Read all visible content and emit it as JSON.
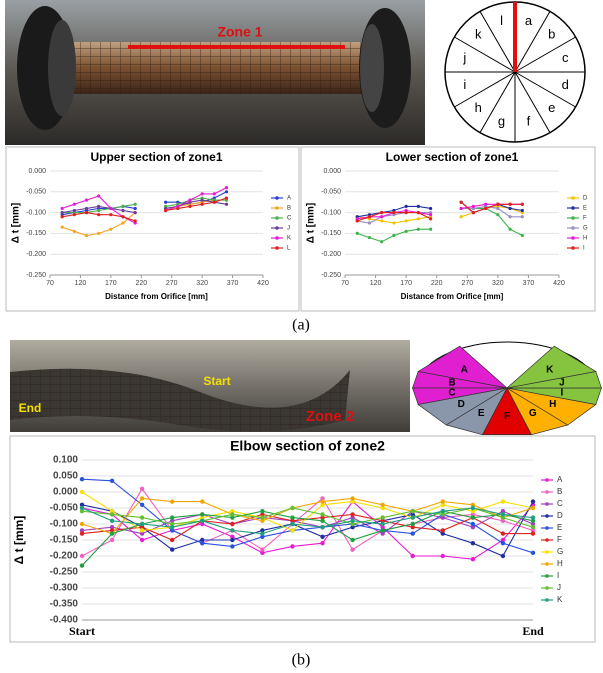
{
  "figure": {
    "caption_a": "(a)",
    "caption_b": "(b)",
    "zone1": "Zone 1",
    "zone2": "Zone 2",
    "start": "Start",
    "end": "End",
    "clock_labels": [
      "a",
      "b",
      "c",
      "d",
      "e",
      "f",
      "g",
      "h",
      "i",
      "j",
      "k",
      "l"
    ],
    "pie_labels": [
      "A",
      "B",
      "C",
      "D",
      "E",
      "F",
      "G",
      "H",
      "I",
      "J",
      "K"
    ]
  },
  "chart_data": [
    {
      "type": "line",
      "title": "Upper section of zone1",
      "x_label": "Distance from Orifice [mm]",
      "y_label": "Δ t [mm]",
      "x": [
        90,
        110,
        130,
        150,
        170,
        190,
        210,
        235,
        260,
        280,
        300,
        320,
        340,
        360
      ],
      "xlim": [
        70,
        420
      ],
      "xticks": [
        70,
        120,
        170,
        220,
        270,
        320,
        370,
        420
      ],
      "ylim": [
        -0.25,
        0
      ],
      "yticks": [
        {
          "value": 0,
          "label": "0.000"
        },
        {
          "value": -0.05,
          "label": "-0.050"
        },
        {
          "value": -0.1,
          "label": "-0.100"
        },
        {
          "value": -0.15,
          "label": "-0.150"
        },
        {
          "value": -0.2,
          "label": "-0.200"
        },
        {
          "value": -0.25,
          "label": "-0.250"
        }
      ],
      "grid": true,
      "legend": "right",
      "series": [
        {
          "name": "A",
          "color": "#2a3fd0",
          "values": [
            -0.105,
            -0.1,
            -0.095,
            -0.09,
            -0.09,
            -0.085,
            -0.09,
            null,
            -0.075,
            -0.075,
            -0.08,
            -0.075,
            -0.065,
            -0.05
          ]
        },
        {
          "name": "B",
          "color": "#f5a623",
          "values": [
            -0.135,
            -0.145,
            -0.155,
            -0.15,
            -0.14,
            -0.125,
            -0.1,
            null,
            -0.09,
            -0.085,
            -0.08,
            -0.075,
            -0.07,
            -0.07
          ]
        },
        {
          "name": "C",
          "color": "#4caf50",
          "values": [
            -0.1,
            -0.1,
            -0.1,
            -0.095,
            -0.09,
            -0.085,
            -0.08,
            null,
            -0.085,
            -0.08,
            -0.07,
            -0.065,
            -0.07,
            -0.07
          ]
        },
        {
          "name": "J",
          "color": "#6a3d9a",
          "values": [
            -0.1,
            -0.095,
            -0.09,
            -0.085,
            -0.09,
            -0.095,
            -0.1,
            null,
            -0.09,
            -0.085,
            -0.075,
            -0.07,
            -0.075,
            -0.08
          ]
        },
        {
          "name": "K",
          "color": "#e81ad6",
          "values": [
            -0.09,
            -0.08,
            -0.07,
            -0.06,
            -0.09,
            -0.11,
            -0.125,
            null,
            -0.095,
            -0.085,
            -0.07,
            -0.055,
            -0.055,
            -0.04
          ]
        },
        {
          "name": "L",
          "color": "#e02020",
          "values": [
            -0.11,
            -0.105,
            -0.1,
            -0.105,
            -0.105,
            -0.11,
            -0.12,
            null,
            -0.095,
            -0.09,
            -0.085,
            -0.08,
            -0.075,
            -0.065
          ]
        }
      ]
    },
    {
      "type": "line",
      "title": "Lower section of zone1",
      "x_label": "Distance from Orifice [mm]",
      "y_label": "Δ t [mm]",
      "x": [
        90,
        110,
        130,
        150,
        170,
        190,
        210,
        235,
        260,
        280,
        300,
        320,
        340,
        360
      ],
      "xlim": [
        70,
        420
      ],
      "xticks": [
        70,
        120,
        170,
        220,
        270,
        320,
        370,
        420
      ],
      "ylim": [
        -0.25,
        0
      ],
      "yticks": [
        {
          "value": 0,
          "label": "0.000"
        },
        {
          "value": -0.05,
          "label": "-0.050"
        },
        {
          "value": -0.1,
          "label": "-0.100"
        },
        {
          "value": -0.15,
          "label": "-0.150"
        },
        {
          "value": -0.2,
          "label": "-0.200"
        },
        {
          "value": -0.25,
          "label": "-0.250"
        }
      ],
      "grid": true,
      "legend": "right",
      "series": [
        {
          "name": "D",
          "color": "#f5c400",
          "values": [
            -0.11,
            -0.115,
            -0.12,
            -0.125,
            -0.12,
            -0.115,
            -0.11,
            null,
            -0.11,
            -0.1,
            -0.09,
            -0.085,
            -0.09,
            -0.1
          ]
        },
        {
          "name": "E",
          "color": "#1f2fa0",
          "values": [
            -0.11,
            -0.105,
            -0.1,
            -0.095,
            -0.085,
            -0.085,
            -0.09,
            null,
            -0.075,
            -0.1,
            -0.09,
            -0.08,
            -0.09,
            -0.095
          ]
        },
        {
          "name": "F",
          "color": "#3cb44b",
          "values": [
            -0.15,
            -0.16,
            -0.17,
            -0.155,
            -0.145,
            -0.14,
            -0.14,
            null,
            -0.09,
            -0.09,
            -0.09,
            -0.105,
            -0.14,
            -0.155
          ]
        },
        {
          "name": "G",
          "color": "#9a8fc0",
          "values": [
            -0.12,
            -0.125,
            -0.11,
            -0.105,
            -0.1,
            -0.1,
            -0.1,
            null,
            -0.09,
            -0.09,
            -0.085,
            -0.09,
            -0.11,
            -0.11
          ]
        },
        {
          "name": "H",
          "color": "#e81ad6",
          "values": [
            -0.115,
            -0.11,
            -0.11,
            -0.1,
            -0.095,
            -0.1,
            -0.105,
            null,
            -0.09,
            -0.085,
            -0.08,
            -0.08,
            -0.08,
            -0.08
          ]
        },
        {
          "name": "I",
          "color": "#e02020",
          "values": [
            -0.12,
            -0.11,
            -0.1,
            -0.1,
            -0.1,
            -0.1,
            -0.115,
            null,
            -0.075,
            -0.1,
            -0.09,
            -0.08,
            -0.08,
            -0.08
          ]
        }
      ]
    },
    {
      "type": "line",
      "title": "Elbow section of zone2",
      "y_label": "Δ t [mm]",
      "categories": [
        "Start",
        null,
        null,
        null,
        null,
        null,
        null,
        null,
        null,
        null,
        null,
        null,
        null,
        null,
        null,
        "End"
      ],
      "ylim": [
        -0.4,
        0.1
      ],
      "yticks": [
        {
          "value": 0.1,
          "label": "0.100"
        },
        {
          "value": 0.05,
          "label": "0.050"
        },
        {
          "value": 0,
          "label": "0.000"
        },
        {
          "value": -0.05,
          "label": "-0.050"
        },
        {
          "value": -0.1,
          "label": "-0.100"
        },
        {
          "value": -0.15,
          "label": "-0.150"
        },
        {
          "value": -0.2,
          "label": "-0.200"
        },
        {
          "value": -0.25,
          "label": "-0.250"
        },
        {
          "value": -0.3,
          "label": "-0.300"
        },
        {
          "value": -0.35,
          "label": "-0.350"
        },
        {
          "value": -0.4,
          "label": "-0.400"
        }
      ],
      "grid": true,
      "legend": "right",
      "series": [
        {
          "name": "A",
          "color": "#e81ad6",
          "values": [
            -0.05,
            -0.07,
            -0.15,
            -0.12,
            -0.1,
            -0.14,
            -0.19,
            -0.17,
            -0.16,
            -0.03,
            -0.11,
            -0.2,
            -0.2,
            -0.21,
            -0.15,
            -0.04
          ]
        },
        {
          "name": "B",
          "color": "#f060c0",
          "values": [
            -0.2,
            -0.15,
            0.01,
            -0.12,
            -0.16,
            -0.12,
            -0.18,
            -0.1,
            -0.02,
            -0.18,
            -0.12,
            -0.1,
            -0.08,
            -0.07,
            -0.09,
            -0.12
          ]
        },
        {
          "name": "C",
          "color": "#a040c0",
          "values": [
            -0.12,
            -0.11,
            -0.13,
            -0.09,
            -0.07,
            -0.1,
            -0.08,
            -0.09,
            -0.11,
            -0.08,
            -0.13,
            -0.06,
            -0.08,
            -0.11,
            -0.06,
            -0.1
          ]
        },
        {
          "name": "D",
          "color": "#1f2fa0",
          "values": [
            -0.04,
            -0.06,
            -0.11,
            -0.18,
            -0.15,
            -0.15,
            -0.12,
            -0.1,
            -0.14,
            -0.11,
            -0.09,
            -0.07,
            -0.13,
            -0.16,
            -0.2,
            -0.03
          ]
        },
        {
          "name": "E",
          "color": "#2a50e0",
          "values": [
            0.04,
            0.035,
            -0.04,
            -0.12,
            -0.16,
            -0.17,
            -0.14,
            -0.12,
            -0.11,
            -0.1,
            -0.12,
            -0.13,
            -0.07,
            -0.1,
            -0.16,
            -0.19
          ]
        },
        {
          "name": "F",
          "color": "#e02020",
          "values": [
            -0.13,
            -0.12,
            -0.11,
            -0.15,
            -0.09,
            -0.1,
            -0.07,
            -0.09,
            -0.08,
            -0.07,
            -0.09,
            -0.11,
            -0.12,
            -0.08,
            -0.13,
            -0.13
          ]
        },
        {
          "name": "G",
          "color": "#f5e000",
          "values": [
            0.0,
            -0.06,
            -0.12,
            -0.11,
            -0.08,
            -0.06,
            -0.08,
            -0.12,
            -0.04,
            -0.03,
            -0.05,
            -0.08,
            -0.04,
            -0.06,
            -0.03,
            -0.05
          ]
        },
        {
          "name": "H",
          "color": "#f0a800",
          "values": [
            -0.1,
            -0.13,
            -0.02,
            -0.03,
            -0.03,
            -0.07,
            -0.09,
            -0.05,
            -0.03,
            -0.02,
            -0.04,
            -0.06,
            -0.03,
            -0.04,
            -0.08,
            -0.05
          ]
        },
        {
          "name": "I",
          "color": "#20a040",
          "values": [
            -0.23,
            -0.13,
            -0.1,
            -0.08,
            -0.07,
            -0.08,
            -0.06,
            -0.08,
            -0.09,
            -0.15,
            -0.12,
            -0.1,
            -0.06,
            -0.08,
            -0.07,
            -0.09
          ]
        },
        {
          "name": "J",
          "color": "#60c030",
          "values": [
            -0.06,
            -0.07,
            -0.08,
            -0.1,
            -0.09,
            -0.07,
            -0.08,
            -0.05,
            -0.07,
            -0.1,
            -0.08,
            -0.06,
            -0.07,
            -0.05,
            -0.08,
            -0.11
          ]
        },
        {
          "name": "K",
          "color": "#20a080",
          "values": [
            -0.05,
            -0.09,
            -0.1,
            -0.11,
            -0.09,
            -0.12,
            -0.13,
            -0.1,
            -0.11,
            -0.09,
            -0.1,
            -0.08,
            -0.06,
            -0.05,
            -0.07,
            -0.08
          ]
        }
      ]
    }
  ]
}
